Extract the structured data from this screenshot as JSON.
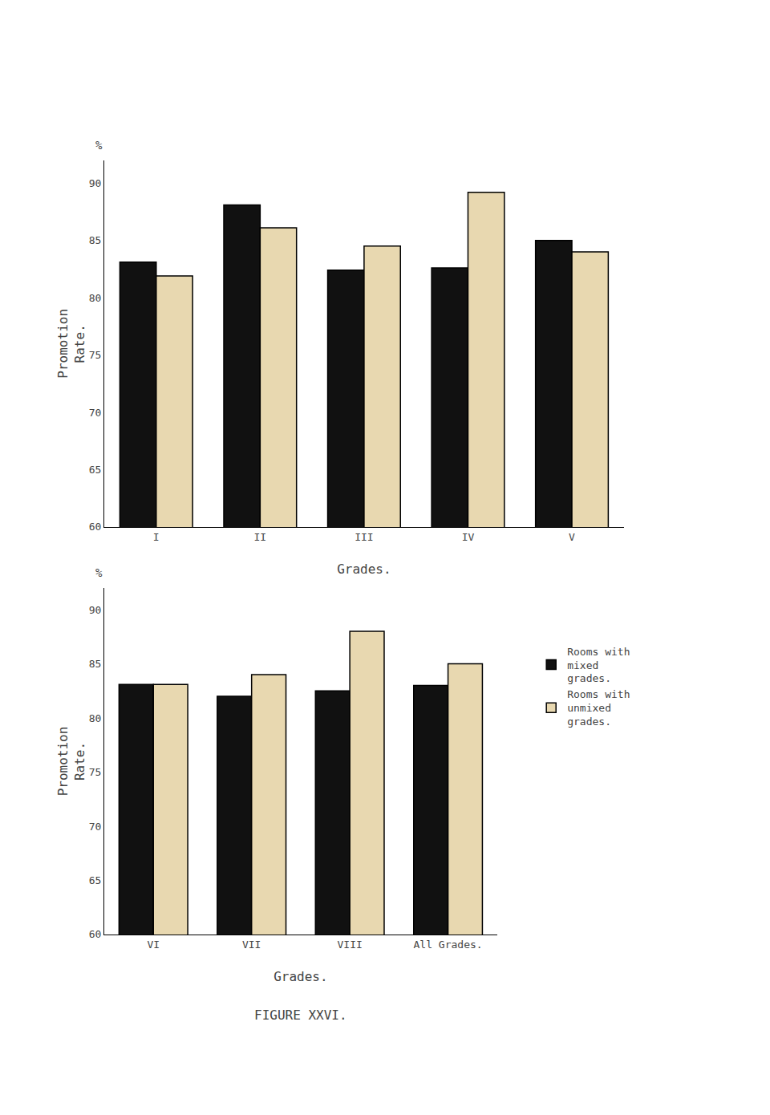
{
  "chart_data": [
    {
      "type": "bar",
      "categories": [
        "I",
        "II",
        "III",
        "IV",
        "V"
      ],
      "series": [
        {
          "name": "Rooms with\nmixed\ngrades.",
          "color": "#111111",
          "values": [
            83.1,
            88.1,
            82.4,
            82.6,
            85.0
          ]
        },
        {
          "name": "Rooms with\nunmixed\ngrades.",
          "color": "#e8d8b0",
          "values": [
            81.9,
            86.1,
            84.5,
            89.2,
            84.0
          ]
        }
      ],
      "xlabel": "Grades.",
      "ylabel": "Promotion\nRate.",
      "ylim": [
        60,
        92
      ],
      "yticks": [
        60,
        65,
        70,
        75,
        80,
        85,
        90
      ],
      "grid": false,
      "annotations": [
        "%"
      ]
    },
    {
      "type": "bar",
      "categories": [
        "VI",
        "VII",
        "VIII",
        "All Grades."
      ],
      "series": [
        {
          "name": "Rooms with\nmixed\ngrades.",
          "color": "#111111",
          "values": [
            83.1,
            82.0,
            82.5,
            83.0
          ]
        },
        {
          "name": "Rooms with\nunmixed\ngrades.",
          "color": "#e8d8b0",
          "values": [
            83.1,
            84.0,
            88.0,
            85.0
          ]
        }
      ],
      "xlabel": "Grades.",
      "ylabel": "Promotion\nRate.",
      "ylim": [
        60,
        92
      ],
      "yticks": [
        60,
        65,
        70,
        75,
        80,
        85,
        90
      ],
      "grid": false,
      "legend": "right",
      "annotations": [
        "%",
        "FIGURE XXVI."
      ]
    }
  ]
}
